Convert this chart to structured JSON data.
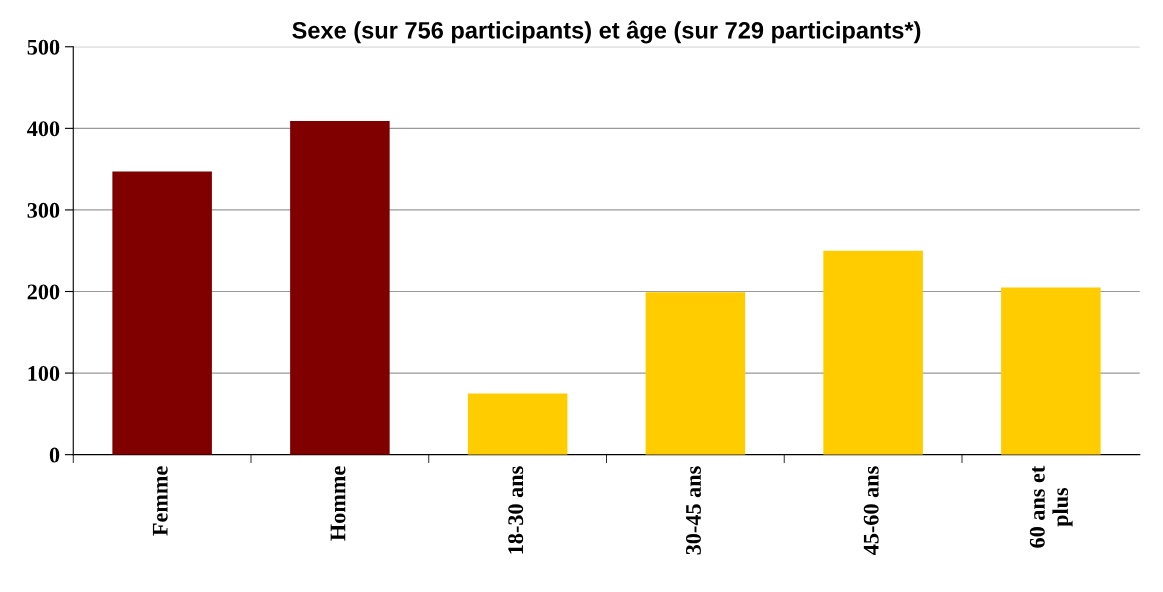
{
  "chart_data": {
    "type": "bar",
    "title": "Sexe (sur 756 participants) et âge (sur 729 participants*)",
    "categories": [
      "Femme",
      "Homme",
      "18-30 ans",
      "30-45 ans",
      "45-60 ans",
      "60 ans et\nplus"
    ],
    "values": [
      347,
      409,
      75,
      199,
      250,
      205
    ],
    "colors": [
      "#800000",
      "#800000",
      "#ffcc00",
      "#ffcc00",
      "#ffcc00",
      "#ffcc00"
    ],
    "ylim": [
      0,
      500
    ],
    "yticks": [
      0,
      100,
      200,
      300,
      400,
      500
    ],
    "grid": "y",
    "legend": false
  }
}
